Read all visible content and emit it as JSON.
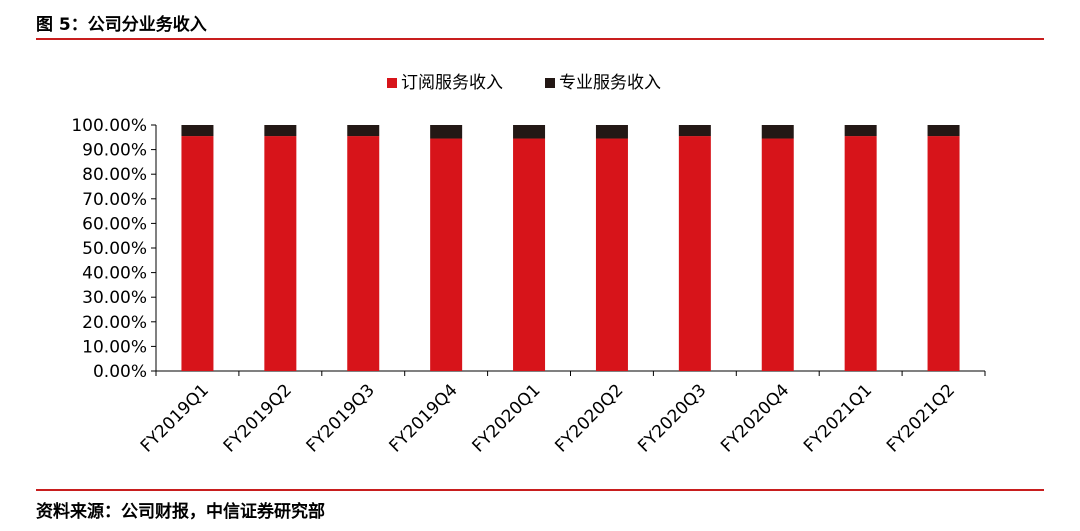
{
  "figure": {
    "title": "图 5：公司分业务收入",
    "source": "资料来源：公司财报，中信证券研究部"
  },
  "chart_data": {
    "type": "bar",
    "stacked": true,
    "categories": [
      "FY2019Q1",
      "FY2019Q2",
      "FY2019Q3",
      "FY2019Q4",
      "FY2020Q1",
      "FY2020Q2",
      "FY2020Q3",
      "FY2020Q4",
      "FY2021Q1",
      "FY2021Q2"
    ],
    "series": [
      {
        "name": "订阅服务收入",
        "color": "#d7141a",
        "values": [
          95.5,
          95.5,
          95.5,
          94.5,
          94.5,
          94.5,
          95.5,
          94.5,
          95.5,
          95.5
        ]
      },
      {
        "name": "专业服务收入",
        "color": "#231815",
        "values": [
          4.5,
          4.5,
          4.5,
          5.5,
          5.5,
          5.5,
          4.5,
          5.5,
          4.5,
          4.5
        ]
      }
    ],
    "y_ticks": [
      "0.00%",
      "10.00%",
      "20.00%",
      "30.00%",
      "40.00%",
      "50.00%",
      "60.00%",
      "70.00%",
      "80.00%",
      "90.00%",
      "100.00%"
    ],
    "ylim": [
      0,
      100
    ],
    "grid": false,
    "legend_position": "top-center"
  }
}
